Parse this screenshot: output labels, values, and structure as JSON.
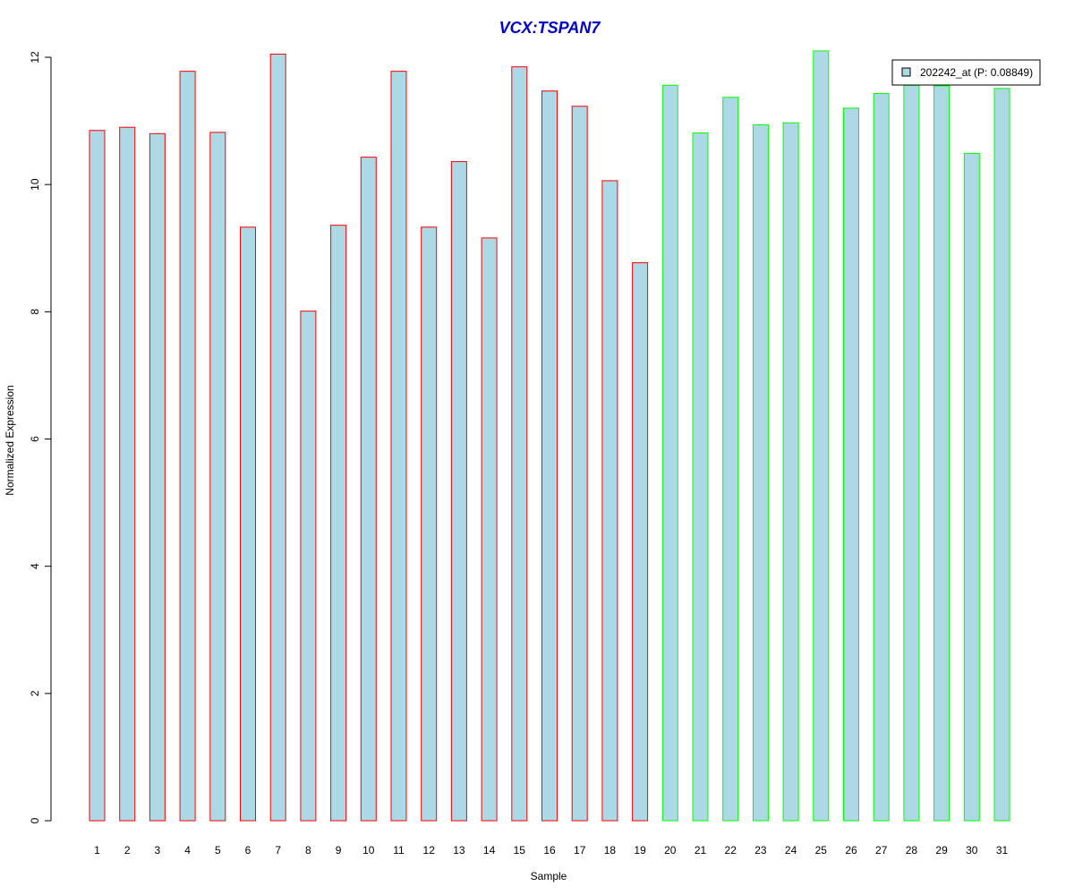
{
  "chart_data": {
    "type": "bar",
    "title": "VCX:TSPAN7",
    "xlabel": "Sample",
    "ylabel": "Normalized Expression",
    "ylim": [
      0,
      12
    ],
    "yticks": [
      "0",
      "2",
      "4",
      "6",
      "8",
      "10",
      "12"
    ],
    "categories": [
      "1",
      "2",
      "3",
      "4",
      "5",
      "6",
      "7",
      "8",
      "9",
      "10",
      "11",
      "12",
      "13",
      "14",
      "15",
      "16",
      "17",
      "18",
      "19",
      "20",
      "21",
      "22",
      "23",
      "24",
      "25",
      "26",
      "27",
      "28",
      "29",
      "30",
      "31"
    ],
    "values": [
      10.85,
      10.9,
      10.8,
      11.78,
      10.82,
      9.33,
      12.05,
      8.01,
      9.36,
      10.43,
      11.78,
      9.33,
      10.36,
      9.16,
      11.85,
      11.47,
      11.23,
      10.06,
      8.77,
      11.56,
      10.81,
      11.37,
      10.94,
      10.97,
      12.1,
      11.2,
      11.43,
      11.56,
      11.55,
      10.49,
      11.51
    ],
    "fill_color": "#add8e6",
    "group_outline_colors": [
      "#ff0000",
      "#ff0000",
      "#ff0000",
      "#ff0000",
      "#ff0000",
      "#ff0000",
      "#ff0000",
      "#ff0000",
      "#ff0000",
      "#ff0000",
      "#ff0000",
      "#ff0000",
      "#ff0000",
      "#ff0000",
      "#ff0000",
      "#ff0000",
      "#ff0000",
      "#ff0000",
      "#ff0000",
      "#00ff00",
      "#00ff00",
      "#00ff00",
      "#00ff00",
      "#00ff00",
      "#00ff00",
      "#00ff00",
      "#00ff00",
      "#00ff00",
      "#00ff00",
      "#00ff00",
      "#00ff00"
    ],
    "title_color": "#0000cd",
    "legend": {
      "placement": "top-right",
      "label": "202242_at (P: 0.08849)",
      "swatch_color": "#add8e6"
    },
    "grid": false
  }
}
